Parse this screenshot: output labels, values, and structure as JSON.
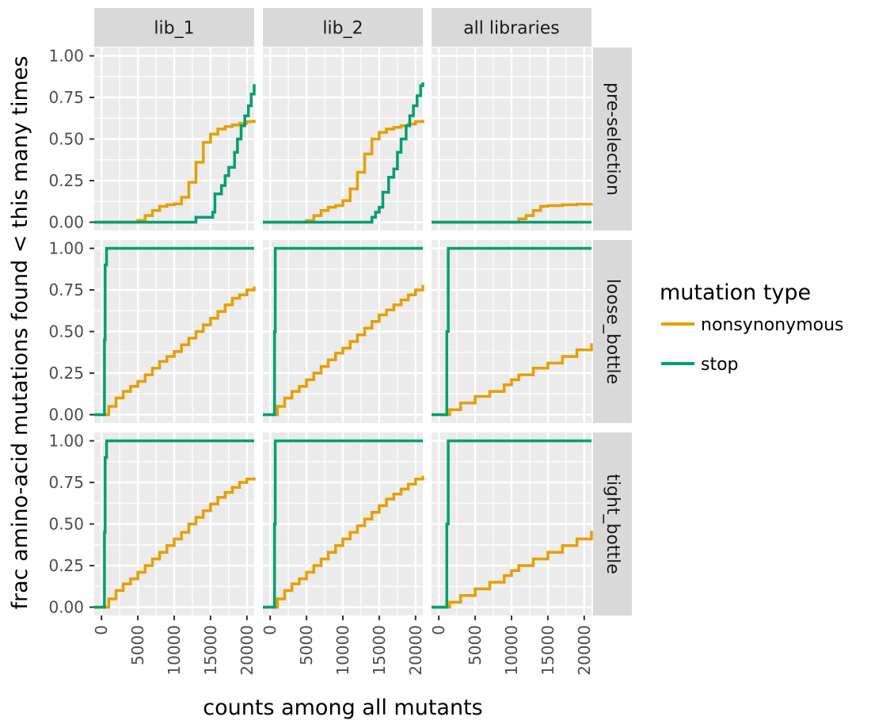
{
  "chart_data": {
    "type": "line",
    "step": true,
    "facet_columns": [
      "lib_1",
      "lib_2",
      "all libraries"
    ],
    "facet_rows": [
      "pre-selection",
      "loose_bottle",
      "tight_bottle"
    ],
    "xlabel": "counts among all mutants",
    "ylabel": "frac amino-acid mutations found < this many times",
    "xlim": [
      -1000,
      21000
    ],
    "ylim": [
      -0.05,
      1.05
    ],
    "x_ticks": [
      0,
      5000,
      10000,
      15000,
      20000
    ],
    "x_tick_labels": [
      "0",
      "5000",
      "10000",
      "15000",
      "20000"
    ],
    "y_ticks": [
      0,
      0.25,
      0.5,
      0.75,
      1.0
    ],
    "y_tick_labels": [
      "0.00",
      "0.25",
      "0.50",
      "0.75",
      "1.00"
    ],
    "grid": true,
    "legend": {
      "title": "mutation type",
      "position": "right",
      "entries": [
        {
          "name": "nonsynonymous",
          "color": "#E69F00"
        },
        {
          "name": "stop",
          "color": "#009E73"
        }
      ]
    },
    "panels": [
      {
        "row": "pre-selection",
        "col": "lib_1",
        "series": [
          {
            "name": "nonsynonymous",
            "x": [
              -1000,
              4300,
              5000,
              6000,
              7000,
              8000,
              9000,
              10000,
              11000,
              12000,
              13000,
              14000,
              15000,
              16000,
              17000,
              18000,
              19000,
              20000,
              21000
            ],
            "y": [
              0,
              0,
              0.01,
              0.04,
              0.07,
              0.095,
              0.105,
              0.11,
              0.15,
              0.24,
              0.36,
              0.48,
              0.53,
              0.56,
              0.575,
              0.585,
              0.595,
              0.605,
              0.615
            ]
          },
          {
            "name": "stop",
            "x": [
              -1000,
              13000,
              15300,
              15600,
              16500,
              17000,
              17500,
              18300,
              18700,
              19200,
              19700,
              20200,
              20600,
              21000
            ],
            "y": [
              0,
              0.03,
              0.06,
              0.17,
              0.22,
              0.28,
              0.33,
              0.42,
              0.5,
              0.58,
              0.64,
              0.7,
              0.77,
              0.83
            ]
          }
        ]
      },
      {
        "row": "pre-selection",
        "col": "lib_2",
        "series": [
          {
            "name": "nonsynonymous",
            "x": [
              -1000,
              4000,
              5000,
              6000,
              7000,
              8000,
              9000,
              10000,
              11000,
              12000,
              13000,
              14000,
              15000,
              16000,
              17000,
              18000,
              19000,
              20000,
              21000
            ],
            "y": [
              0,
              0,
              0.01,
              0.04,
              0.07,
              0.09,
              0.1,
              0.13,
              0.2,
              0.3,
              0.41,
              0.5,
              0.54,
              0.56,
              0.57,
              0.58,
              0.59,
              0.605,
              0.615
            ]
          },
          {
            "name": "stop",
            "x": [
              -1000,
              14000,
              14500,
              15000,
              15500,
              16300,
              17000,
              17500,
              18000,
              18700,
              19200,
              19700,
              20200,
              20700,
              21000
            ],
            "y": [
              0,
              0.03,
              0.06,
              0.09,
              0.18,
              0.27,
              0.32,
              0.42,
              0.5,
              0.58,
              0.64,
              0.7,
              0.76,
              0.82,
              0.84
            ]
          }
        ]
      },
      {
        "row": "pre-selection",
        "col": "all libraries",
        "series": [
          {
            "name": "nonsynonymous",
            "x": [
              -1000,
              9800,
              11000,
              12000,
              13000,
              14000,
              15000,
              17000,
              19000,
              21000
            ],
            "y": [
              0,
              0,
              0.02,
              0.04,
              0.07,
              0.095,
              0.1,
              0.105,
              0.108,
              0.115
            ]
          },
          {
            "name": "stop",
            "x": [
              -1000,
              21000
            ],
            "y": [
              0,
              0
            ]
          }
        ]
      },
      {
        "row": "loose_bottle",
        "col": "lib_1",
        "series": [
          {
            "name": "nonsynonymous",
            "x": [
              -1000,
              500,
              1000,
              2000,
              3000,
              4000,
              5000,
              6000,
              7000,
              8000,
              9000,
              10000,
              11000,
              12000,
              13000,
              14000,
              15000,
              16000,
              17000,
              18000,
              19000,
              20000,
              21000
            ],
            "y": [
              0,
              0,
              0.05,
              0.1,
              0.14,
              0.17,
              0.2,
              0.24,
              0.28,
              0.32,
              0.35,
              0.38,
              0.42,
              0.46,
              0.5,
              0.54,
              0.58,
              0.62,
              0.66,
              0.7,
              0.72,
              0.75,
              0.77
            ]
          },
          {
            "name": "stop",
            "x": [
              -1000,
              300,
              400,
              500,
              700,
              21000
            ],
            "y": [
              0,
              0,
              0.45,
              0.9,
              1.0,
              1.0
            ]
          }
        ]
      },
      {
        "row": "loose_bottle",
        "col": "lib_2",
        "series": [
          {
            "name": "nonsynonymous",
            "x": [
              -1000,
              500,
              1000,
              2000,
              3000,
              4000,
              5000,
              6000,
              7000,
              8000,
              9000,
              10000,
              11000,
              12000,
              13000,
              14000,
              15000,
              16000,
              17000,
              18000,
              19000,
              20000,
              21000
            ],
            "y": [
              0,
              0,
              0.05,
              0.1,
              0.14,
              0.17,
              0.21,
              0.25,
              0.29,
              0.33,
              0.37,
              0.4,
              0.44,
              0.48,
              0.52,
              0.56,
              0.6,
              0.63,
              0.66,
              0.69,
              0.72,
              0.75,
              0.78
            ]
          },
          {
            "name": "stop",
            "x": [
              -1000,
              500,
              600,
              700,
              21000
            ],
            "y": [
              0,
              0,
              0.5,
              1.0,
              1.0
            ]
          }
        ]
      },
      {
        "row": "loose_bottle",
        "col": "all libraries",
        "series": [
          {
            "name": "nonsynonymous",
            "x": [
              -1000,
              1000,
              1500,
              3000,
              5000,
              7000,
              9000,
              10000,
              11000,
              13000,
              15000,
              17000,
              19000,
              21000
            ],
            "y": [
              0,
              0,
              0.03,
              0.07,
              0.11,
              0.14,
              0.18,
              0.21,
              0.24,
              0.28,
              0.31,
              0.35,
              0.39,
              0.43
            ]
          },
          {
            "name": "stop",
            "x": [
              -1000,
              1000,
              1100,
              1300,
              21000
            ],
            "y": [
              0,
              0,
              0.5,
              1.0,
              1.0
            ]
          }
        ]
      },
      {
        "row": "tight_bottle",
        "col": "lib_1",
        "series": [
          {
            "name": "nonsynonymous",
            "x": [
              -1000,
              500,
              1000,
              2000,
              3000,
              4000,
              5000,
              6000,
              7000,
              8000,
              9000,
              10000,
              11000,
              12000,
              13000,
              14000,
              15000,
              16000,
              17000,
              18000,
              19000,
              20000,
              21000
            ],
            "y": [
              0,
              0,
              0.05,
              0.1,
              0.14,
              0.17,
              0.21,
              0.25,
              0.29,
              0.33,
              0.37,
              0.41,
              0.45,
              0.5,
              0.54,
              0.58,
              0.62,
              0.66,
              0.69,
              0.72,
              0.75,
              0.77,
              0.78
            ]
          },
          {
            "name": "stop",
            "x": [
              -1000,
              300,
              400,
              500,
              700,
              21000
            ],
            "y": [
              0,
              0,
              0.45,
              0.9,
              1.0,
              1.0
            ]
          }
        ]
      },
      {
        "row": "tight_bottle",
        "col": "lib_2",
        "series": [
          {
            "name": "nonsynonymous",
            "x": [
              -1000,
              500,
              1000,
              2000,
              3000,
              4000,
              5000,
              6000,
              7000,
              8000,
              9000,
              10000,
              11000,
              12000,
              13000,
              14000,
              15000,
              16000,
              17000,
              18000,
              19000,
              20000,
              21000
            ],
            "y": [
              0,
              0,
              0.05,
              0.1,
              0.14,
              0.17,
              0.21,
              0.25,
              0.29,
              0.33,
              0.37,
              0.41,
              0.45,
              0.49,
              0.53,
              0.57,
              0.61,
              0.65,
              0.68,
              0.71,
              0.74,
              0.77,
              0.79
            ]
          },
          {
            "name": "stop",
            "x": [
              -1000,
              500,
              600,
              700,
              21000
            ],
            "y": [
              0,
              0,
              0.5,
              1.0,
              1.0
            ]
          }
        ]
      },
      {
        "row": "tight_bottle",
        "col": "all libraries",
        "series": [
          {
            "name": "nonsynonymous",
            "x": [
              -1000,
              1000,
              1500,
              3000,
              5000,
              7000,
              9000,
              10000,
              11000,
              13000,
              15000,
              17000,
              19000,
              21000
            ],
            "y": [
              0,
              0,
              0.03,
              0.07,
              0.11,
              0.15,
              0.19,
              0.22,
              0.25,
              0.29,
              0.33,
              0.37,
              0.41,
              0.46
            ]
          },
          {
            "name": "stop",
            "x": [
              -1000,
              1000,
              1100,
              1300,
              21000
            ],
            "y": [
              0,
              0,
              0.5,
              1.0,
              1.0
            ]
          }
        ]
      }
    ]
  }
}
